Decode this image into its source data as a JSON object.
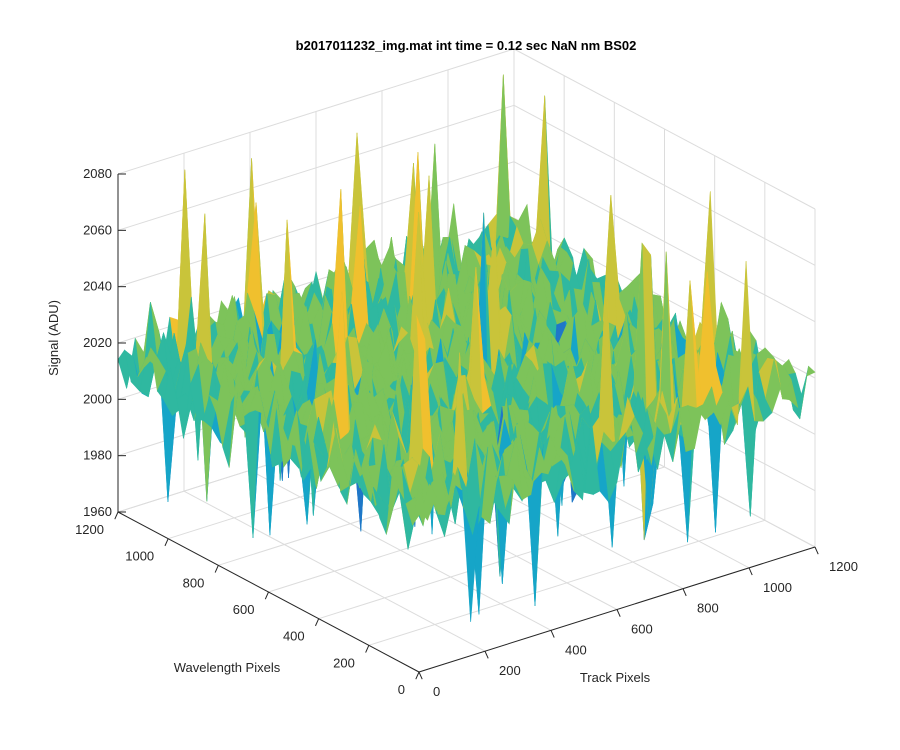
{
  "chart_data": {
    "type": "surface",
    "title": "b2017011232_img.mat int time = 0.12 sec  NaN nm BS02",
    "xlabel": "Track Pixels",
    "ylabel": "Wavelength Pixels",
    "zlabel": "Signal (ADU)",
    "xlim": [
      0,
      1200
    ],
    "ylim": [
      0,
      1200
    ],
    "zlim": [
      1960,
      2080
    ],
    "xticks": [
      0,
      200,
      400,
      600,
      800,
      1000,
      1200
    ],
    "yticks": [
      0,
      200,
      400,
      600,
      800,
      1000,
      1200
    ],
    "zticks": [
      1960,
      1980,
      2000,
      2020,
      2040,
      2060,
      2080
    ],
    "grid": true,
    "surface_summary": {
      "mean_signal": 2015,
      "typical_range": [
        1990,
        2040
      ],
      "min_spike": 1962,
      "max_spike": 2076
    },
    "colormap": [
      "#1f77c8",
      "#16a5c8",
      "#2fb8a0",
      "#7dc35a",
      "#c9c43a",
      "#f0c02e"
    ]
  }
}
